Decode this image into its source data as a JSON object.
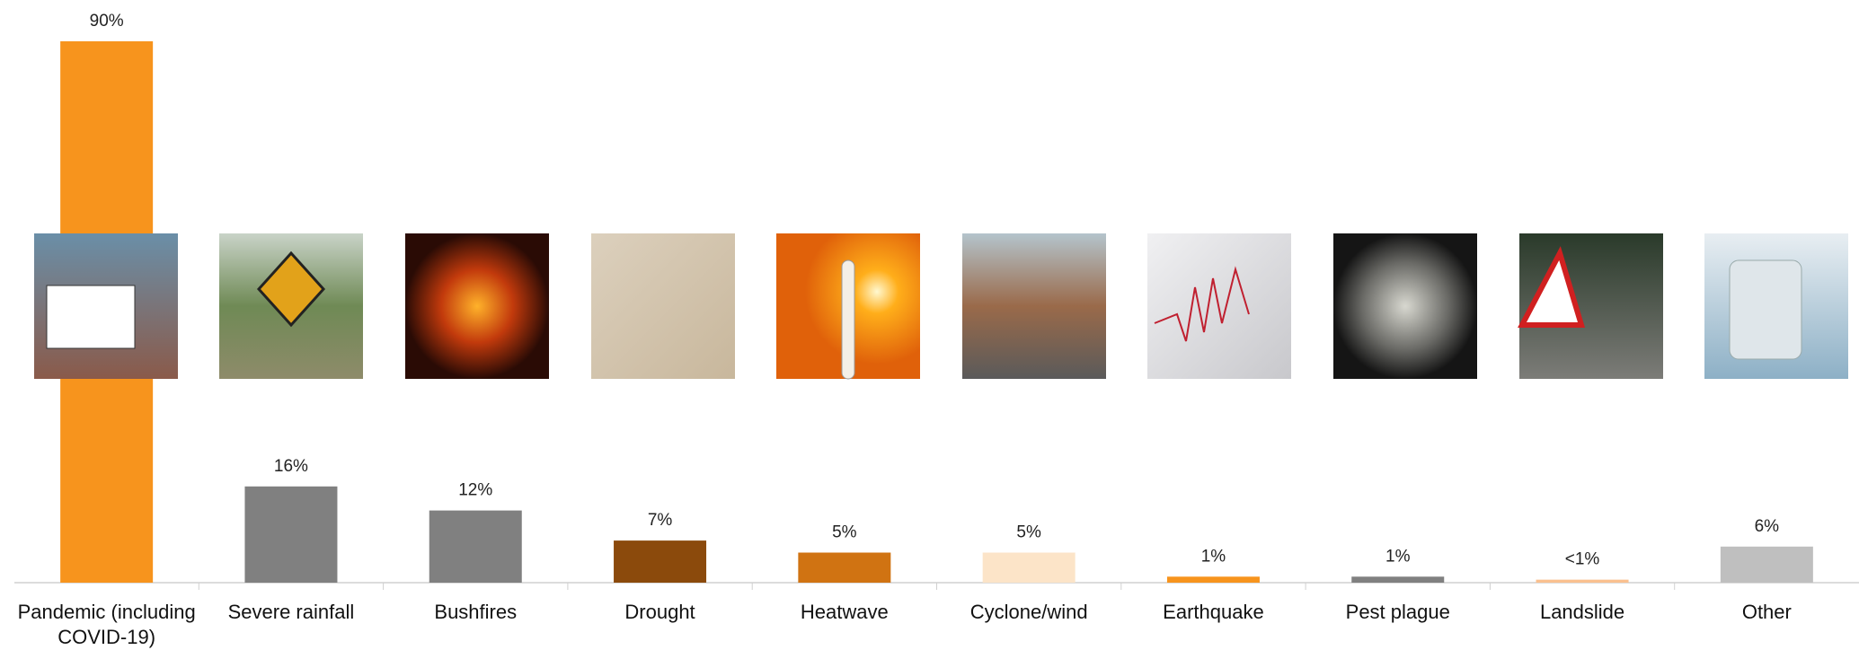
{
  "chart_data": {
    "type": "bar",
    "categories": [
      "Pandemic (including COVID-19)",
      "Severe rainfall",
      "Bushfires",
      "Drought",
      "Heatwave",
      "Cyclone/wind",
      "Earthquake",
      "Pest plague",
      "Landslide",
      "Other"
    ],
    "values": [
      90,
      16,
      12,
      7,
      5,
      5,
      1,
      1,
      0.5,
      6
    ],
    "value_labels": [
      "90%",
      "16%",
      "12%",
      "7%",
      "5%",
      "5%",
      "1%",
      "1%",
      "<1%",
      "6%"
    ],
    "colors": [
      "#f7941d",
      "#808080",
      "#808080",
      "#8b4a0c",
      "#d07312",
      "#fce4c8",
      "#f7941d",
      "#808080",
      "#fac08f",
      "#bfbfbf"
    ]
  }
}
